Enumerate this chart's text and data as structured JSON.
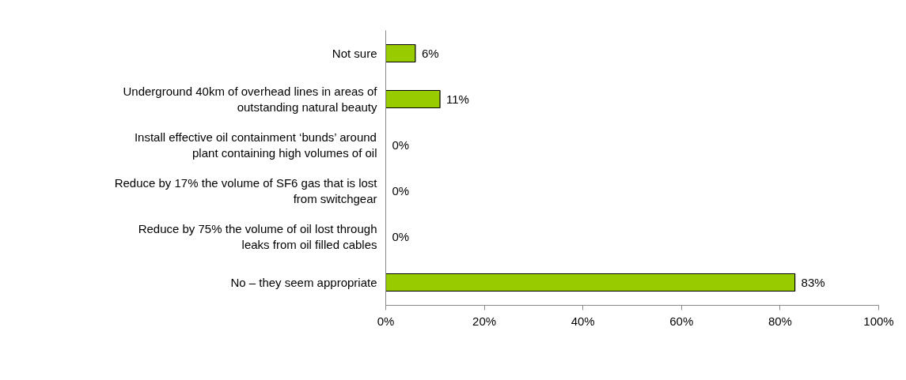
{
  "chart_data": {
    "type": "bar",
    "orientation": "horizontal",
    "categories": [
      "Not sure",
      "Underground 40km of overhead lines in areas of outstanding natural beauty",
      "Install effective oil containment ‘bunds’ around plant containing high volumes of oil",
      "Reduce by 17% the volume of SF6 gas that is lost from switchgear",
      "Reduce by 75% the volume of oil lost through leaks from oil filled cables",
      "No – they seem appropriate"
    ],
    "values": [
      6,
      11,
      0,
      0,
      0,
      83
    ],
    "value_labels": [
      "6%",
      "11%",
      "0%",
      "0%",
      "0%",
      "83%"
    ],
    "color": "#99cc00",
    "xlim": [
      0,
      100
    ],
    "xticks": [
      {
        "value": 0,
        "label": "0%"
      },
      {
        "value": 20,
        "label": "20%"
      },
      {
        "value": 40,
        "label": "40%"
      },
      {
        "value": 60,
        "label": "60%"
      },
      {
        "value": 80,
        "label": "80%"
      },
      {
        "value": 100,
        "label": "100%"
      }
    ],
    "grid": false
  }
}
